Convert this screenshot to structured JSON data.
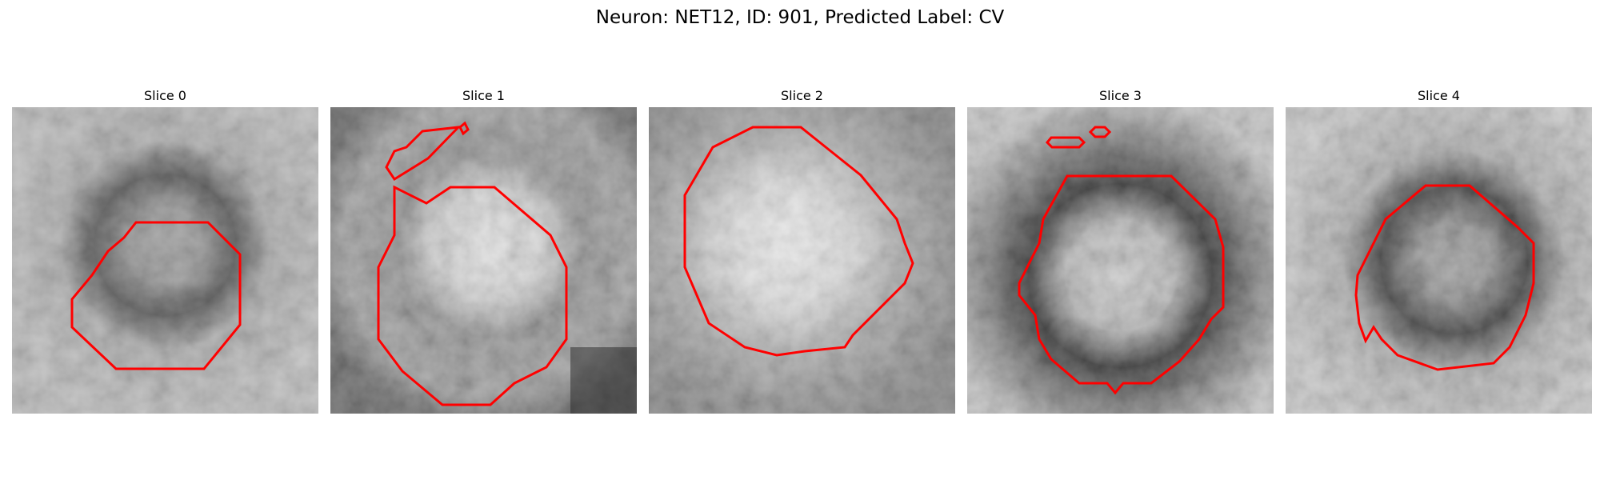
{
  "figure": {
    "title": "Neuron: NET12, ID: 901, Predicted Label: CV"
  },
  "colors": {
    "contour": "#ff0000",
    "background": "#ffffff"
  },
  "panels": [
    {
      "title": "Slice 0"
    },
    {
      "title": "Slice 1"
    },
    {
      "title": "Slice 2"
    },
    {
      "title": "Slice 3"
    },
    {
      "title": "Slice 4"
    }
  ]
}
